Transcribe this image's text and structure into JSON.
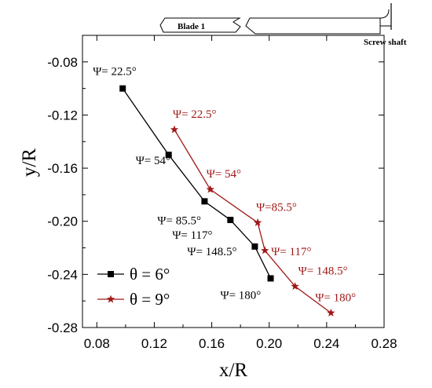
{
  "chart_data": {
    "type": "line",
    "xlabel": "x/R",
    "ylabel": "y/R",
    "xlim": [
      0.07,
      0.28
    ],
    "ylim": [
      -0.28,
      -0.06
    ],
    "xticks": [
      "0.08",
      "0.12",
      "0.16",
      "0.20",
      "0.24",
      "0.28"
    ],
    "yticks": [
      "-0.08",
      "-0.12",
      "-0.16",
      "-0.20",
      "-0.24",
      "-0.28"
    ],
    "xtick_values": [
      0.08,
      0.12,
      0.16,
      0.2,
      0.24,
      0.28
    ],
    "ytick_values": [
      -0.08,
      -0.12,
      -0.16,
      -0.2,
      -0.24,
      -0.28
    ],
    "series": [
      {
        "name": "θ = 6°",
        "color": "#000000",
        "marker": "square",
        "points": [
          {
            "x": 0.098,
            "y": -0.1,
            "label": "Ψ= 22.5°"
          },
          {
            "x": 0.13,
            "y": -0.15,
            "label": "Ψ= 54°"
          },
          {
            "x": 0.155,
            "y": -0.185,
            "label": "Ψ= 85.5°"
          },
          {
            "x": 0.173,
            "y": -0.199,
            "label": "Ψ= 117°"
          },
          {
            "x": 0.19,
            "y": -0.219,
            "label": "Ψ= 148.5°"
          },
          {
            "x": 0.201,
            "y": -0.243,
            "label": "Ψ= 180°"
          }
        ]
      },
      {
        "name": "θ = 9°",
        "color": "#a01818",
        "marker": "star",
        "points": [
          {
            "x": 0.134,
            "y": -0.131,
            "label": "Ψ= 22.5°"
          },
          {
            "x": 0.159,
            "y": -0.176,
            "label": "Ψ= 54°"
          },
          {
            "x": 0.192,
            "y": -0.201,
            "label": "Ψ=85.5°"
          },
          {
            "x": 0.197,
            "y": -0.222,
            "label": "Ψ= 117°"
          },
          {
            "x": 0.218,
            "y": -0.249,
            "label": "Ψ= 148.5°"
          },
          {
            "x": 0.243,
            "y": -0.269,
            "label": "Ψ= 180°"
          }
        ]
      }
    ],
    "legend_position": "bottom-left",
    "grid": false
  },
  "diagram": {
    "blade_label": "Blade 1",
    "shaft_label": "Screw shaft"
  }
}
